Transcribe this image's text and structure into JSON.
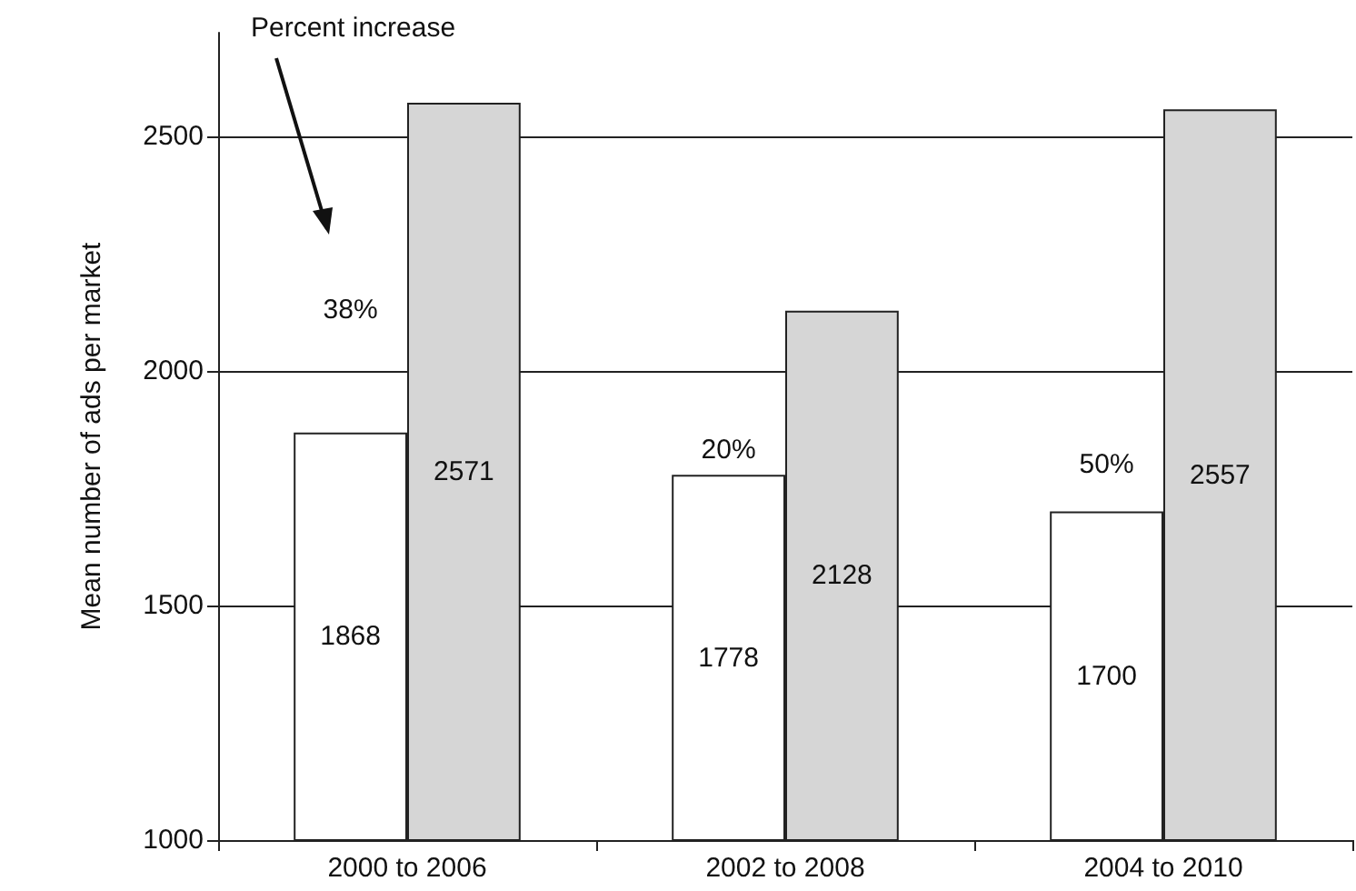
{
  "chart_data": {
    "type": "bar",
    "ylabel": "Mean number of ads per market",
    "categories": [
      "2000 to 2006",
      "2002 to 2008",
      "2004 to 2010"
    ],
    "series": [
      {
        "color": "#ffffff",
        "values": [
          1868,
          1778,
          1700
        ]
      },
      {
        "color": "#d6d6d6",
        "values": [
          2571,
          2128,
          2557
        ]
      }
    ],
    "ylim": [
      1000,
      2720
    ],
    "yticks": [
      1000,
      1500,
      2000,
      2500
    ],
    "grid": "y",
    "data_labels": true,
    "annotations": [
      "Percent increase",
      {
        "text": "38%",
        "x": "2000 to 2006",
        "y": 2130
      },
      {
        "text": "20%",
        "x": "2002 to 2008",
        "y": 1830
      },
      {
        "text": "50%",
        "x": "2004 to 2010",
        "y": 1800
      }
    ]
  }
}
